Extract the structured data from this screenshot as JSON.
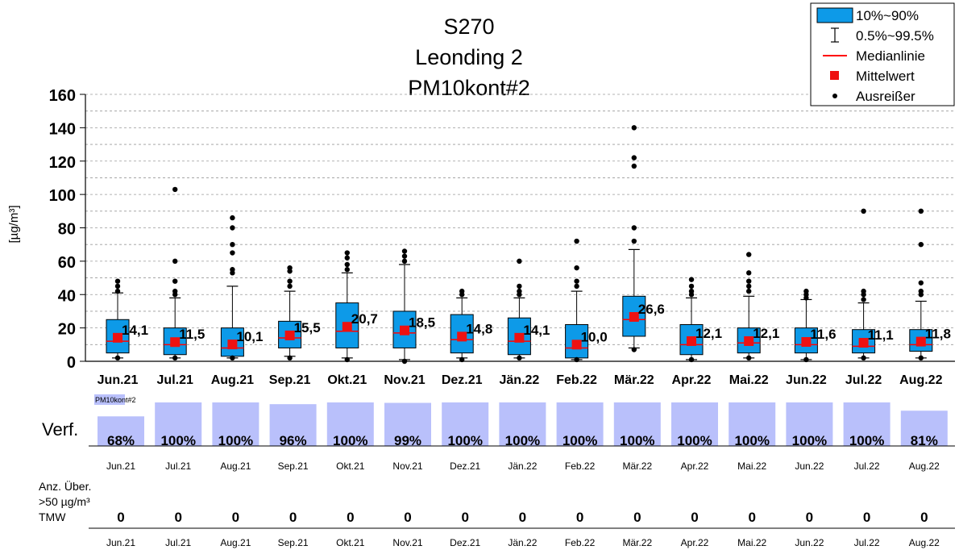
{
  "chart_data": {
    "type": "boxplot",
    "title_lines": [
      "S270",
      "Leonding 2",
      "PM10kont#2"
    ],
    "ylabel": "[µg/m³]",
    "ylim": [
      0,
      160
    ],
    "yticks": [
      0,
      20,
      40,
      60,
      80,
      100,
      120,
      140,
      160
    ],
    "grid": true,
    "legend_position": "top-right",
    "colors": {
      "box_fill": "#0d9ae8",
      "median": "#ff0000",
      "mean": "#ee1111",
      "availability_bar": "#b9c0fb",
      "grid": "#9a9a9a"
    },
    "legend": [
      {
        "symbol": "box",
        "label": "10%~90%"
      },
      {
        "symbol": "whisker",
        "label": "0.5%~99.5%"
      },
      {
        "symbol": "median-line",
        "label": "Medianlinie"
      },
      {
        "symbol": "mean-square",
        "label": "Mittelwert"
      },
      {
        "symbol": "outlier-dot",
        "label": "Ausreißer"
      }
    ],
    "categories": [
      "Jun.21",
      "Jul.21",
      "Aug.21",
      "Sep.21",
      "Okt.21",
      "Nov.21",
      "Dez.21",
      "Jän.22",
      "Feb.22",
      "Mär.22",
      "Apr.22",
      "Mai.22",
      "Jun.22",
      "Jul.22",
      "Aug.22"
    ],
    "boxes": [
      {
        "p10": 5,
        "p90": 25,
        "median": 12,
        "mean": 14.1,
        "mean_label": "14,1",
        "w_low": 2,
        "w_high": 41,
        "outliers": [
          2,
          42,
          45,
          48
        ]
      },
      {
        "p10": 4,
        "p90": 20,
        "median": 10,
        "mean": 11.5,
        "mean_label": "11,5",
        "w_low": 2,
        "w_high": 38,
        "outliers": [
          2,
          40,
          42,
          48,
          60,
          103
        ]
      },
      {
        "p10": 3,
        "p90": 20,
        "median": 8,
        "mean": 10.1,
        "mean_label": "10,1",
        "w_low": 2,
        "w_high": 45,
        "outliers": [
          2,
          53,
          55,
          65,
          70,
          80,
          86
        ]
      },
      {
        "p10": 8,
        "p90": 24,
        "median": 14,
        "mean": 15.5,
        "mean_label": "15,5",
        "w_low": 3,
        "w_high": 42,
        "outliers": [
          2,
          45,
          48,
          54,
          56
        ]
      },
      {
        "p10": 8,
        "p90": 35,
        "median": 18,
        "mean": 20.7,
        "mean_label": "20,7",
        "w_low": 2,
        "w_high": 53,
        "outliers": [
          1,
          55,
          58,
          62,
          65
        ]
      },
      {
        "p10": 8,
        "p90": 30,
        "median": 17,
        "mean": 18.5,
        "mean_label": "18,5",
        "w_low": 1,
        "w_high": 58,
        "outliers": [
          0,
          60,
          63,
          66
        ]
      },
      {
        "p10": 5,
        "p90": 28,
        "median": 13,
        "mean": 14.8,
        "mean_label": "14,8",
        "w_low": 2,
        "w_high": 38,
        "outliers": [
          1,
          40,
          42
        ]
      },
      {
        "p10": 4,
        "p90": 26,
        "median": 12,
        "mean": 14.1,
        "mean_label": "14,1",
        "w_low": 2,
        "w_high": 38,
        "outliers": [
          2,
          40,
          42,
          45,
          60
        ]
      },
      {
        "p10": 2,
        "p90": 22,
        "median": 8,
        "mean": 10.0,
        "mean_label": "10,0",
        "w_low": 1,
        "w_high": 42,
        "outliers": [
          1,
          45,
          48,
          56,
          72
        ]
      },
      {
        "p10": 15,
        "p90": 39,
        "median": 25,
        "mean": 26.6,
        "mean_label": "26,6",
        "w_low": 8,
        "w_high": 67,
        "outliers": [
          7,
          72,
          80,
          117,
          122,
          140
        ]
      },
      {
        "p10": 4,
        "p90": 22,
        "median": 10,
        "mean": 12.1,
        "mean_label": "12,1",
        "w_low": 1,
        "w_high": 38,
        "outliers": [
          1,
          40,
          42,
          45,
          49
        ]
      },
      {
        "p10": 5,
        "p90": 20,
        "median": 11,
        "mean": 12.1,
        "mean_label": "12,1",
        "w_low": 2,
        "w_high": 39,
        "outliers": [
          2,
          42,
          45,
          48,
          53,
          64
        ]
      },
      {
        "p10": 5,
        "p90": 20,
        "median": 10,
        "mean": 11.6,
        "mean_label": "11,6",
        "w_low": 1,
        "w_high": 37,
        "outliers": [
          1,
          38,
          40,
          42
        ]
      },
      {
        "p10": 5,
        "p90": 19,
        "median": 9,
        "mean": 11.1,
        "mean_label": "11,1",
        "w_low": 2,
        "w_high": 35,
        "outliers": [
          2,
          37,
          40,
          42,
          90
        ]
      },
      {
        "p10": 6,
        "p90": 19,
        "median": 10,
        "mean": 11.8,
        "mean_label": "11,8",
        "w_low": 2,
        "w_high": 36,
        "outliers": [
          2,
          40,
          42,
          47,
          70,
          90
        ]
      }
    ],
    "availability": {
      "legend_label": "PM10kont#2",
      "row_label": "Verf.",
      "values": [
        68,
        100,
        100,
        96,
        100,
        99,
        100,
        100,
        100,
        100,
        100,
        100,
        100,
        100,
        81
      ],
      "labels": [
        "68%",
        "100%",
        "100%",
        "96%",
        "100%",
        "99%",
        "100%",
        "100%",
        "100%",
        "100%",
        "100%",
        "100%",
        "100%",
        "100%",
        "81%"
      ]
    },
    "exceedances": {
      "row_label_lines": [
        "Anz. Über.",
        ">50 µg/m³",
        "TMW"
      ],
      "values": [
        "0",
        "0",
        "0",
        "0",
        "0",
        "0",
        "0",
        "0",
        "0",
        "0",
        "0",
        "0",
        "0",
        "0",
        "0"
      ]
    }
  }
}
